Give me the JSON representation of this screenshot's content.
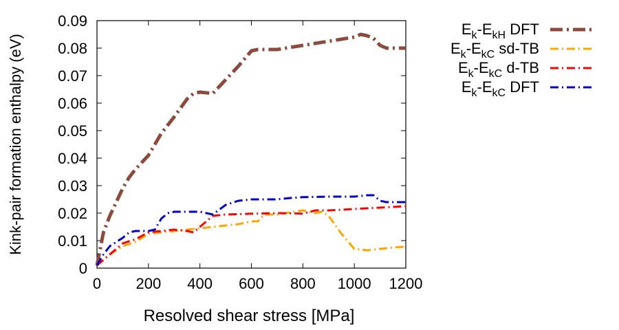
{
  "chart_data": {
    "type": "line",
    "xlabel": "Resolved shear stress [MPa]",
    "ylabel": "Kink-pair formation enthalpy (eV)",
    "xlim": [
      0,
      1200
    ],
    "ylim": [
      0,
      0.09
    ],
    "xticks": [
      0,
      200,
      400,
      600,
      800,
      1000,
      1200
    ],
    "yticks": [
      0,
      0.01,
      0.02,
      0.03,
      0.04,
      0.05,
      0.06,
      0.07,
      0.08,
      0.09
    ],
    "ytick_labels": [
      "0",
      "0.01",
      "0.02",
      "0.03",
      "0.04",
      "0.05",
      "0.06",
      "0.07",
      "0.08",
      "0.09"
    ],
    "grid": false,
    "legend_position": "outside-right-top",
    "series": [
      {
        "name": "Ek-EkH DFT",
        "legend": {
          "base": "E",
          "sub1": "k",
          "mid": "-E",
          "sub2": "kH",
          "suffix": " DFT"
        },
        "color": "#8b4a3c",
        "style": "dash-dot-thick",
        "x": [
          0,
          25,
          50,
          100,
          125,
          150,
          200,
          225,
          250,
          300,
          350,
          375,
          400,
          450,
          500,
          550,
          600,
          625,
          700,
          800,
          900,
          1000,
          1025,
          1050,
          1075,
          1100,
          1125,
          1150,
          1200
        ],
        "y": [
          0.001,
          0.013,
          0.019,
          0.029,
          0.033,
          0.036,
          0.041,
          0.045,
          0.049,
          0.055,
          0.0615,
          0.0635,
          0.064,
          0.0635,
          0.0685,
          0.0735,
          0.079,
          0.0795,
          0.0795,
          0.081,
          0.0825,
          0.084,
          0.085,
          0.0845,
          0.0835,
          0.081,
          0.08,
          0.08,
          0.08
        ]
      },
      {
        "name": "Ek-EkC sd-TB",
        "legend": {
          "base": "E",
          "sub1": "k",
          "mid": "-E",
          "sub2": "kC",
          "suffix": " sd-TB"
        },
        "color": "#ffa500",
        "style": "dash-dot",
        "x": [
          0,
          50,
          100,
          150,
          200,
          250,
          300,
          350,
          400,
          450,
          500,
          550,
          600,
          625,
          650,
          700,
          800,
          850,
          875,
          900,
          950,
          1000,
          1050,
          1100,
          1150,
          1200
        ],
        "y": [
          0.001,
          0.005,
          0.008,
          0.0095,
          0.0125,
          0.013,
          0.0135,
          0.014,
          0.0145,
          0.015,
          0.0155,
          0.016,
          0.017,
          0.017,
          0.0195,
          0.0195,
          0.021,
          0.02,
          0.0205,
          0.019,
          0.0125,
          0.007,
          0.0065,
          0.007,
          0.0075,
          0.0078
        ]
      },
      {
        "name": "Ek-EkC d-TB",
        "legend": {
          "base": "E",
          "sub1": "k",
          "mid": "-E",
          "sub2": "kC",
          "suffix": " d-TB"
        },
        "color": "#ff0000",
        "style": "dash-dot",
        "x": [
          0,
          50,
          100,
          150,
          200,
          250,
          300,
          350,
          375,
          400,
          450,
          500,
          600,
          700,
          800,
          850,
          900,
          1000,
          1100,
          1200
        ],
        "y": [
          0.001,
          0.005,
          0.009,
          0.0105,
          0.013,
          0.0135,
          0.014,
          0.0135,
          0.013,
          0.015,
          0.019,
          0.0195,
          0.0198,
          0.02,
          0.0198,
          0.021,
          0.021,
          0.0215,
          0.022,
          0.0225
        ]
      },
      {
        "name": "Ek-EkC DFT",
        "legend": {
          "base": "E",
          "sub1": "k",
          "mid": "-E",
          "sub2": "kC",
          "suffix": " DFT"
        },
        "color": "#0000cc",
        "style": "dash-dot",
        "x": [
          0,
          25,
          50,
          100,
          125,
          150,
          200,
          225,
          250,
          275,
          300,
          400,
          450,
          500,
          550,
          600,
          700,
          750,
          800,
          900,
          1000,
          1050,
          1075,
          1100,
          1125,
          1200
        ],
        "y": [
          0.001,
          0.005,
          0.008,
          0.011,
          0.013,
          0.0135,
          0.0135,
          0.014,
          0.018,
          0.02,
          0.0205,
          0.0205,
          0.0195,
          0.023,
          0.0245,
          0.025,
          0.025,
          0.0255,
          0.0258,
          0.026,
          0.026,
          0.0265,
          0.0265,
          0.0245,
          0.024,
          0.024
        ]
      }
    ]
  }
}
